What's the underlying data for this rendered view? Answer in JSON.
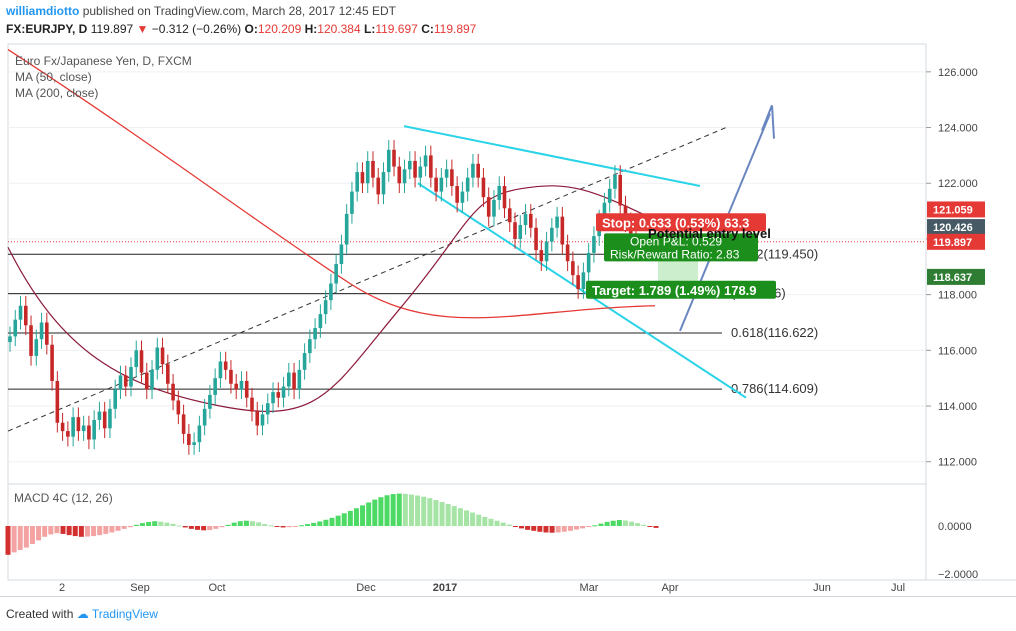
{
  "header": {
    "author": "williamdiotto",
    "published": "published on TradingView.com, March 28, 2017 12:45 EDT",
    "symbol": "FX:EURJPY, D",
    "last": "119.897",
    "change": "−0.312 (−0.26%)",
    "open_label": "O:",
    "open": "120.209",
    "high_label": "H:",
    "high": "120.384",
    "low_label": "L:",
    "low": "119.697",
    "close_label": "C:",
    "close": "119.897"
  },
  "legend": {
    "instrument": "Euro Fx/Japanese Yen, D, FXCM",
    "ma50": "MA (50, close)",
    "ma200": "MA (200, close)"
  },
  "chart_data": {
    "type": "candlestick",
    "price_axis": {
      "ylim": [
        111.2,
        127.0
      ],
      "ticks": [
        "126.000",
        "124.000",
        "122.000",
        "120.000",
        "118.000",
        "116.000",
        "114.000",
        "112.000"
      ]
    },
    "time_axis": {
      "labels": [
        "2",
        "Sep",
        "Oct",
        "Dec",
        "2017",
        "Mar",
        "Apr",
        "Jun",
        "Jul"
      ]
    },
    "price_badges": [
      {
        "label": "121.059",
        "value": 121.059,
        "color": "#e53935"
      },
      {
        "label": "120.426",
        "value": 120.426,
        "color": "#455a64"
      },
      {
        "label": "119.897",
        "value": 119.897,
        "color": "#e53935"
      },
      {
        "label": "118.637",
        "value": 118.637,
        "color": "#2e7d32"
      }
    ],
    "fib_levels": [
      {
        "label": "0.382(119.450)",
        "value": 119.45
      },
      {
        "label": "(118.036)",
        "value": 118.036
      },
      {
        "label": "0.618(116.622)",
        "value": 116.622
      },
      {
        "label": "0.786(114.609)",
        "value": 114.609
      }
    ],
    "position": {
      "stop_label": "Stop: 0.633 (0.53%) 63.3",
      "target_label": "Target: 1.789 (1.49%) 178.9",
      "open_pl": "Open P&L: 0.529",
      "risk_reward": "Risk/Reward Ratio: 2.83",
      "note": "Potential entry level",
      "entry": 120.0,
      "stop": 120.633,
      "target": 118.211
    },
    "closes": [
      116.5,
      117.1,
      117.6,
      116.9,
      115.8,
      116.4,
      117.0,
      116.2,
      114.9,
      113.4,
      113.1,
      112.9,
      113.6,
      113.1,
      113.3,
      112.8,
      113.5,
      113.8,
      113.2,
      113.9,
      114.6,
      115.1,
      114.7,
      115.4,
      116.0,
      115.2,
      114.6,
      115.3,
      116.1,
      115.5,
      114.8,
      114.2,
      113.7,
      113.0,
      112.6,
      112.7,
      113.3,
      113.9,
      114.4,
      115.0,
      115.6,
      115.3,
      114.8,
      114.6,
      114.9,
      114.3,
      113.8,
      113.3,
      113.7,
      114.1,
      114.5,
      114.3,
      114.7,
      115.2,
      114.6,
      115.3,
      115.9,
      116.4,
      116.8,
      117.3,
      117.8,
      118.4,
      119.1,
      119.8,
      120.9,
      121.7,
      122.4,
      122.0,
      122.8,
      122.2,
      121.6,
      122.4,
      123.2,
      122.6,
      122.0,
      122.5,
      122.8,
      122.2,
      122.6,
      123.0,
      122.2,
      121.7,
      122.2,
      122.5,
      121.9,
      121.3,
      121.7,
      122.2,
      122.7,
      122.2,
      121.5,
      120.8,
      121.4,
      121.9,
      121.1,
      120.6,
      120.0,
      120.5,
      120.9,
      120.4,
      119.6,
      119.2,
      119.9,
      120.4,
      120.8,
      119.8,
      119.2,
      118.7,
      118.2,
      118.8,
      119.5,
      120.1,
      120.7,
      121.3,
      121.8,
      122.3,
      121.2,
      120.6,
      120.2,
      119.9
    ],
    "macd": [
      -1.2,
      -1.1,
      -1.0,
      -0.9,
      -0.75,
      -0.6,
      -0.45,
      -0.35,
      -0.3,
      -0.33,
      -0.38,
      -0.42,
      -0.45,
      -0.44,
      -0.42,
      -0.38,
      -0.33,
      -0.27,
      -0.2,
      -0.12,
      -0.05,
      0.05,
      0.12,
      0.17,
      0.2,
      0.18,
      0.14,
      0.09,
      0.02,
      -0.06,
      -0.12,
      -0.16,
      -0.18,
      -0.17,
      -0.12,
      -0.05,
      0.05,
      0.14,
      0.2,
      0.22,
      0.2,
      0.15,
      0.08,
      0.03,
      -0.02,
      -0.06,
      -0.05,
      -0.02,
      0.03,
      0.08,
      0.13,
      0.19,
      0.26,
      0.34,
      0.43,
      0.53,
      0.63,
      0.74,
      0.86,
      0.98,
      1.1,
      1.2,
      1.28,
      1.33,
      1.35,
      1.34,
      1.31,
      1.27,
      1.22,
      1.16,
      1.08,
      1.0,
      0.92,
      0.83,
      0.74,
      0.65,
      0.56,
      0.47,
      0.38,
      0.3,
      0.22,
      0.14,
      0.06,
      -0.02,
      -0.1,
      -0.16,
      -0.2,
      -0.24,
      -0.27,
      -0.28,
      -0.27,
      -0.24,
      -0.2,
      -0.15,
      -0.1,
      -0.04,
      0.03,
      0.1,
      0.17,
      0.22,
      0.25,
      0.23,
      0.18,
      0.12,
      0.05,
      -0.02,
      -0.08
    ],
    "macd_axis": {
      "ticks": [
        "0.0000",
        "−2.0000"
      ]
    },
    "macd_label": "MACD 4C (12, 26)"
  },
  "footer": {
    "created_with": "Created with",
    "brand": "TradingView"
  },
  "colors": {
    "up": "#26a69a",
    "down": "#c62828",
    "ma50": "#8b1a3a",
    "ma200": "#e53935",
    "channel": "#29d3e8",
    "arrow": "#6a86c0"
  }
}
